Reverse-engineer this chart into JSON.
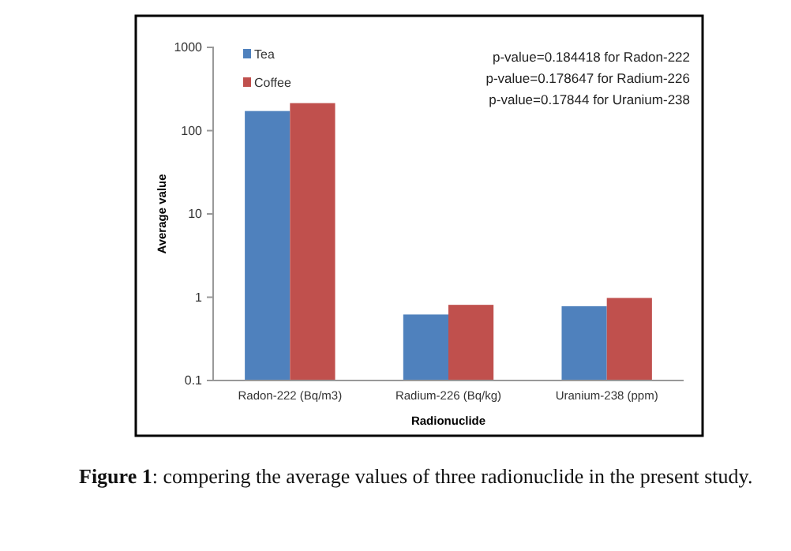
{
  "chart_data": {
    "type": "bar",
    "xlabel": "Radionuclide",
    "ylabel": "Average value",
    "categories": [
      "Radon-222 (Bq/m3)",
      "Radium-226 (Bq/kg)",
      "Uranium-238 (ppm)"
    ],
    "series": [
      {
        "name": "Tea",
        "color": "#4f81bd",
        "values": [
          172,
          0.62,
          0.78
        ]
      },
      {
        "name": "Coffee",
        "color": "#c0504d",
        "values": [
          214,
          0.81,
          0.98
        ]
      }
    ],
    "log": true,
    "ylim": [
      0.1,
      1000
    ],
    "yticks": [
      0.1,
      1,
      10,
      100,
      1000
    ],
    "grid": false,
    "legend": "top left",
    "annotations": [
      "p-value=0.184418 for Radon-222",
      "p-value=0.178647 for Radium-226",
      "p-value=0.17844 for Uranium-238",
      "Figure 1: compering the average values of three radionuclide in the present study."
    ]
  }
}
